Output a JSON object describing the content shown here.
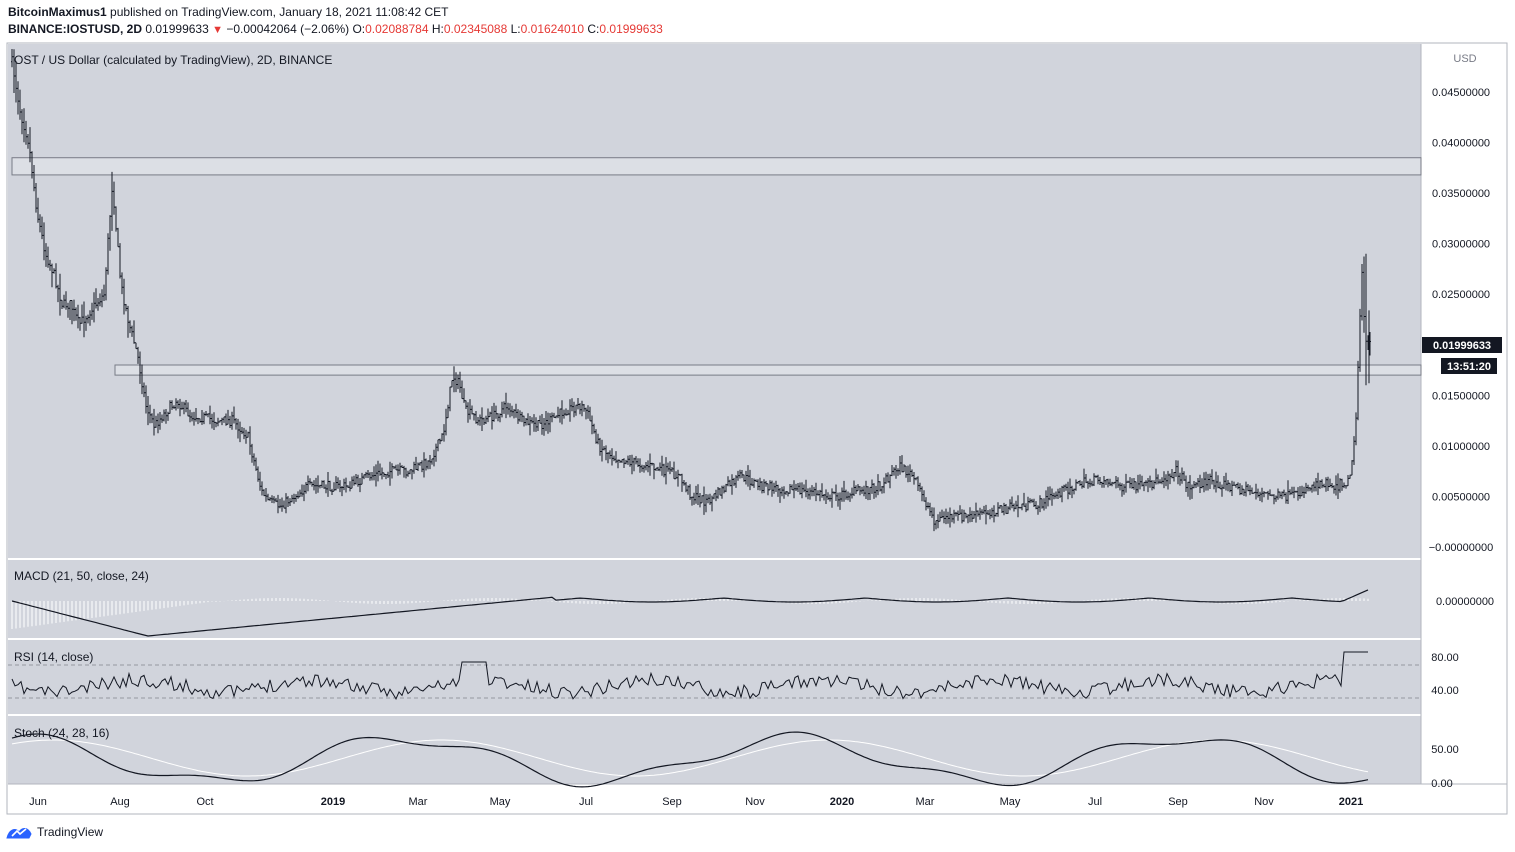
{
  "header": {
    "author": "BitcoinMaximus1",
    "published_text": "published on TradingView.com, January 18, 2021 11:08:42 CET",
    "symbol_line": "BINANCE:IOSTUSD, 2D",
    "last": "0.01999633",
    "change": "−0.00042064 (−2.06%)",
    "o_label": "O:",
    "o": "0.02088784",
    "h_label": "H:",
    "h": "0.02345088",
    "l_label": "L:",
    "l": "0.01624010",
    "c_label": "C:",
    "c": "0.01999633"
  },
  "footer": {
    "brand": "TradingView"
  },
  "chart_data": {
    "type": "line",
    "style": "candlestick bars",
    "title": "OST / US Dollar (calculated by TradingView), 2D, BINANCE",
    "currency": "USD",
    "x_ticks": [
      "Jun",
      "Aug",
      "Oct",
      "2019",
      "Mar",
      "May",
      "Jul",
      "Sep",
      "Nov",
      "2020",
      "Mar",
      "May",
      "Jul",
      "Sep",
      "Nov",
      "2021"
    ],
    "y_ticks": [
      "0.04500000",
      "0.04000000",
      "0.03500000",
      "0.03000000",
      "0.02500000",
      "0.02000000",
      "0.01500000",
      "0.01000000",
      "0.00500000",
      "−0.00000000"
    ],
    "ylim": [
      0,
      0.05
    ],
    "price_label": "0.01999633",
    "countdown_label": "13:51:20",
    "resistance_zones": [
      [
        0.0368,
        0.0385
      ],
      [
        0.017,
        0.018
      ]
    ],
    "price_series": {
      "x": [
        "2018-05-20",
        "2018-05-26",
        "2018-06-01",
        "2018-06-07",
        "2018-06-13",
        "2018-06-19",
        "2018-06-25",
        "2018-07-01",
        "2018-07-07",
        "2018-07-13",
        "2018-07-19",
        "2018-07-25",
        "2018-07-31",
        "2018-08-06",
        "2018-08-12",
        "2018-08-18",
        "2018-08-24",
        "2018-08-30",
        "2018-09-05",
        "2018-09-15",
        "2018-09-25",
        "2018-10-05",
        "2018-10-15",
        "2018-10-25",
        "2018-11-05",
        "2018-11-15",
        "2018-11-20",
        "2018-11-28",
        "2018-12-08",
        "2018-12-18",
        "2019-01-01",
        "2019-01-15",
        "2019-01-31",
        "2019-02-15",
        "2019-03-01",
        "2019-03-15",
        "2019-03-25",
        "2019-04-01",
        "2019-04-06",
        "2019-04-10",
        "2019-04-20",
        "2019-05-01",
        "2019-05-10",
        "2019-05-20",
        "2019-06-01",
        "2019-06-10",
        "2019-06-20",
        "2019-07-01",
        "2019-07-06",
        "2019-07-15",
        "2019-07-25",
        "2019-08-05",
        "2019-08-20",
        "2019-09-01",
        "2019-09-10",
        "2019-09-20",
        "2019-10-01",
        "2019-10-15",
        "2019-10-25",
        "2019-11-01",
        "2019-11-10",
        "2019-11-25",
        "2019-12-10",
        "2020-01-01",
        "2020-01-15",
        "2020-02-01",
        "2020-02-15",
        "2020-02-25",
        "2020-03-05",
        "2020-03-12",
        "2020-03-20",
        "2020-04-05",
        "2020-04-20",
        "2020-05-10",
        "2020-05-25",
        "2020-06-10",
        "2020-06-25",
        "2020-07-10",
        "2020-07-25",
        "2020-08-10",
        "2020-08-25",
        "2020-09-01",
        "2020-09-10",
        "2020-09-25",
        "2020-10-10",
        "2020-10-25",
        "2020-11-10",
        "2020-11-25",
        "2020-12-05",
        "2020-12-15",
        "2020-12-25",
        "2021-01-01",
        "2021-01-05",
        "2021-01-08",
        "2021-01-10",
        "2021-01-12",
        "2021-01-14",
        "2021-01-16",
        "2021-01-18"
      ],
      "close": [
        0.048,
        0.043,
        0.04,
        0.033,
        0.029,
        0.027,
        0.024,
        0.024,
        0.022,
        0.023,
        0.024,
        0.025,
        0.036,
        0.026,
        0.022,
        0.019,
        0.014,
        0.012,
        0.013,
        0.0145,
        0.013,
        0.0128,
        0.0125,
        0.0125,
        0.011,
        0.0055,
        0.0045,
        0.004,
        0.005,
        0.006,
        0.006,
        0.006,
        0.007,
        0.0075,
        0.0075,
        0.0085,
        0.011,
        0.017,
        0.016,
        0.0135,
        0.0125,
        0.013,
        0.014,
        0.0125,
        0.012,
        0.0125,
        0.0135,
        0.014,
        0.0135,
        0.01,
        0.009,
        0.0085,
        0.008,
        0.0075,
        0.007,
        0.005,
        0.0045,
        0.006,
        0.007,
        0.0065,
        0.006,
        0.0058,
        0.0055,
        0.005,
        0.0055,
        0.006,
        0.008,
        0.007,
        0.0045,
        0.0025,
        0.003,
        0.003,
        0.0035,
        0.004,
        0.0042,
        0.0055,
        0.0063,
        0.0067,
        0.006,
        0.006,
        0.007,
        0.0075,
        0.006,
        0.0065,
        0.006,
        0.0055,
        0.005,
        0.005,
        0.006,
        0.0065,
        0.006,
        0.0065,
        0.008,
        0.013,
        0.02,
        0.028,
        0.022,
        0.019,
        0.02
      ]
    },
    "macd": {
      "title": "MACD (21, 50, close, 24)",
      "y_tick": "0.00000000"
    },
    "rsi": {
      "title": "RSI (14, close)",
      "y_ticks": [
        "80.00",
        "40.00"
      ],
      "guide_levels": [
        70,
        30
      ]
    },
    "stoch": {
      "title": "Stoch (24, 28, 16)",
      "y_ticks": [
        "50.00",
        "0.00"
      ]
    }
  }
}
